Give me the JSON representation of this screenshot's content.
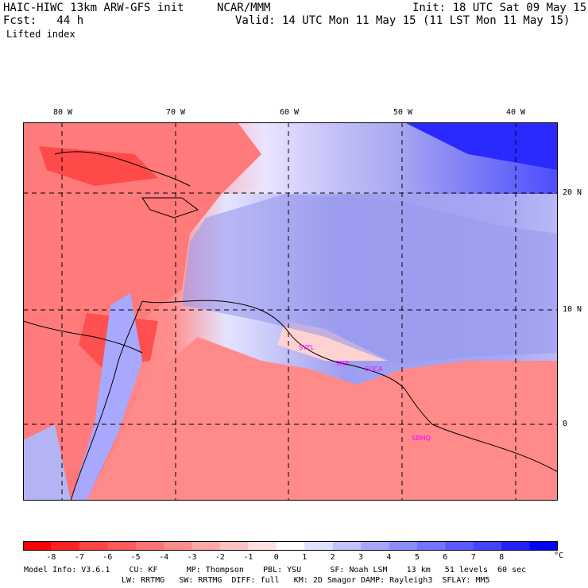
{
  "header": {
    "model_title": "HAIC-HIWC 13km ARW-GFS init",
    "org": "NCAR/MMM",
    "init": "Init: 18 UTC Sat 09 May 15",
    "forecast": "Fcst:   44 h",
    "valid": "Valid: 14 UTC Mon 11 May 15 (11 LST Mon 11 May 15)",
    "field": "Lifted index"
  },
  "map": {
    "lon_labels": [
      "80 W",
      "70 W",
      "60 W",
      "50 W",
      "40 W"
    ],
    "lat_labels": [
      "20 N",
      "10 N",
      "0"
    ],
    "station_labels": [
      "SYEL",
      "SMP",
      "SOCA",
      "SBMQ"
    ]
  },
  "colorbar": {
    "labels": [
      "-8",
      "-7",
      "-6",
      "-5",
      "-4",
      "-3",
      "-2",
      "-1",
      "0",
      "1",
      "2",
      "3",
      "4",
      "5",
      "6",
      "7",
      "8"
    ],
    "unit": "°C",
    "colors": [
      "#ff0000",
      "#ff2222",
      "#ff4444",
      "#ff5959",
      "#ff7373",
      "#ff8c8c",
      "#ffa6a6",
      "#ffc2c2",
      "#ffe0e0",
      "#ffffff",
      "#e0e0ff",
      "#c2c2ff",
      "#a6a6ff",
      "#8c8cff",
      "#7373ff",
      "#5959ff",
      "#4444ff",
      "#2222ff",
      "#0000ff"
    ]
  },
  "footer": {
    "line1": "Model Info: V3.6.1    CU: KF      MP: Thompson    PBL: YSU      SF: Noah LSM    13 km   51 levels  60 sec",
    "line2": "LW: RRTMG   SW: RRTMG  DIFF: full   KM: 2D Smagor DAMP: Rayleigh3  SFLAY: MM5"
  }
}
